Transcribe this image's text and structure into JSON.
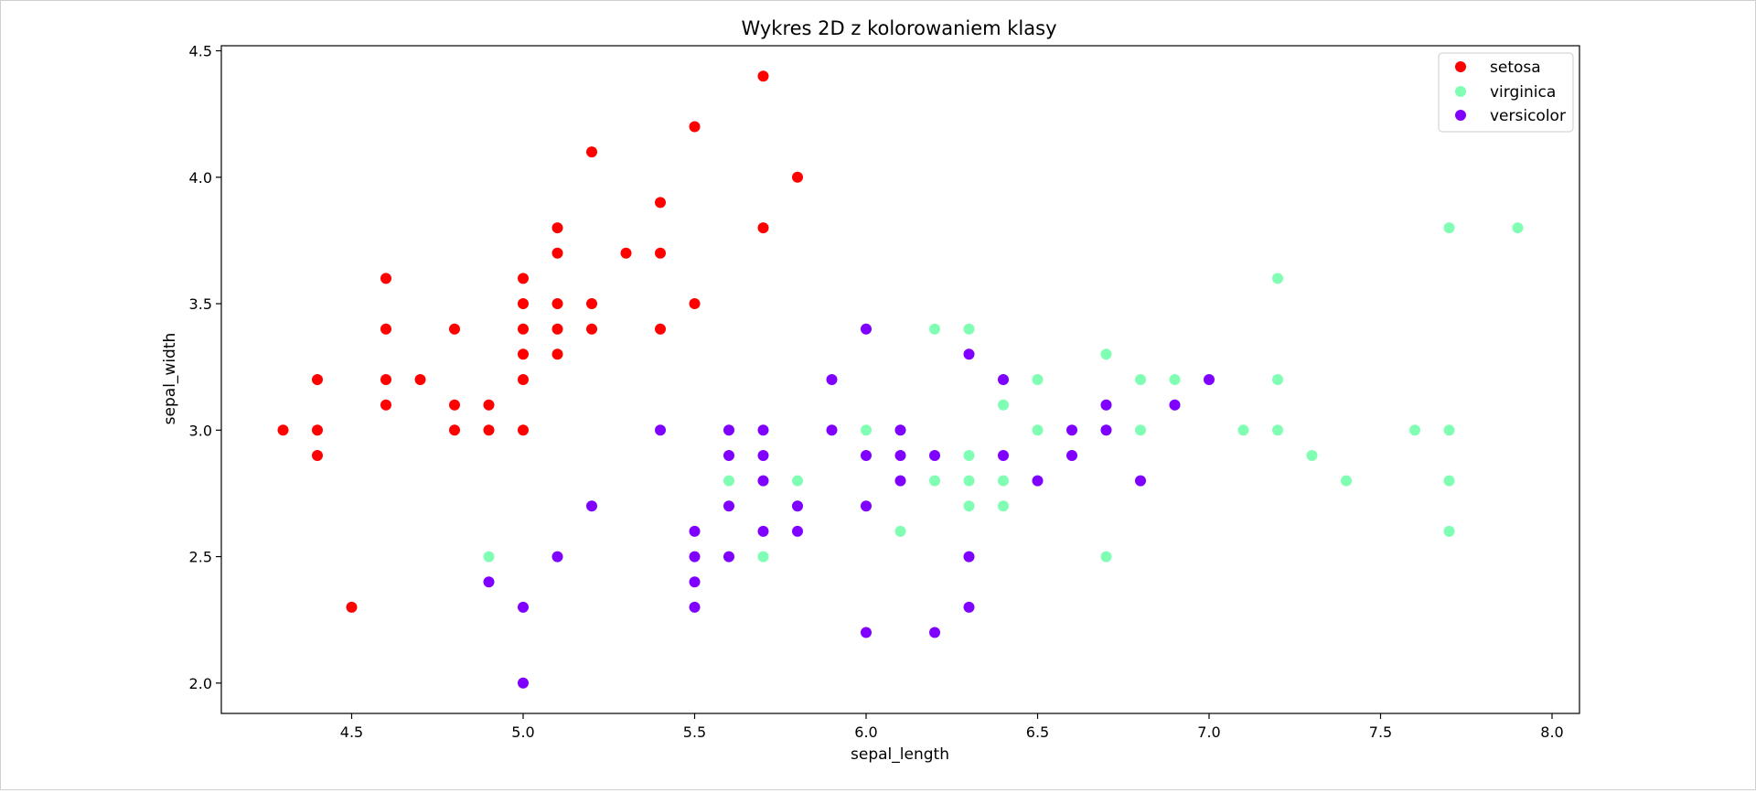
{
  "chart_data": {
    "type": "scatter",
    "title": "Wykres 2D z kolorowaniem klasy",
    "xlabel": "sepal_length",
    "ylabel": "sepal_width",
    "xlim": [
      4.12,
      8.08
    ],
    "ylim": [
      1.88,
      4.52
    ],
    "xticks": [
      "4.5",
      "5.0",
      "5.5",
      "6.0",
      "6.5",
      "7.0",
      "7.5",
      "8.0"
    ],
    "yticks": [
      "2.0",
      "2.5",
      "3.0",
      "3.5",
      "4.0",
      "4.5"
    ],
    "grid": false,
    "legend_position": "top-right",
    "series": [
      {
        "name": "setosa",
        "color": "#ff0000",
        "points": [
          [
            4.3,
            3.0
          ],
          [
            4.4,
            3.2
          ],
          [
            4.4,
            3.0
          ],
          [
            4.4,
            2.9
          ],
          [
            4.5,
            2.3
          ],
          [
            4.6,
            3.6
          ],
          [
            4.6,
            3.4
          ],
          [
            4.6,
            3.2
          ],
          [
            4.6,
            3.1
          ],
          [
            4.7,
            3.2
          ],
          [
            4.8,
            3.4
          ],
          [
            4.8,
            3.1
          ],
          [
            4.8,
            3.0
          ],
          [
            4.9,
            3.1
          ],
          [
            4.9,
            3.0
          ],
          [
            5.0,
            3.6
          ],
          [
            5.0,
            3.5
          ],
          [
            5.0,
            3.4
          ],
          [
            5.0,
            3.3
          ],
          [
            5.0,
            3.2
          ],
          [
            5.0,
            3.0
          ],
          [
            5.1,
            3.8
          ],
          [
            5.1,
            3.7
          ],
          [
            5.1,
            3.5
          ],
          [
            5.1,
            3.4
          ],
          [
            5.1,
            3.3
          ],
          [
            5.2,
            4.1
          ],
          [
            5.2,
            3.5
          ],
          [
            5.2,
            3.4
          ],
          [
            5.3,
            3.7
          ],
          [
            5.4,
            3.9
          ],
          [
            5.4,
            3.7
          ],
          [
            5.4,
            3.4
          ],
          [
            5.5,
            4.2
          ],
          [
            5.5,
            3.5
          ],
          [
            5.7,
            4.4
          ],
          [
            5.7,
            3.8
          ],
          [
            5.8,
            4.0
          ]
        ]
      },
      {
        "name": "virginica",
        "color": "#80ffb4",
        "points": [
          [
            4.9,
            2.5
          ],
          [
            5.6,
            2.8
          ],
          [
            5.7,
            2.5
          ],
          [
            5.8,
            2.8
          ],
          [
            5.8,
            2.7
          ],
          [
            6.0,
            3.0
          ],
          [
            6.1,
            3.0
          ],
          [
            6.1,
            2.6
          ],
          [
            6.2,
            3.4
          ],
          [
            6.2,
            2.8
          ],
          [
            6.3,
            3.4
          ],
          [
            6.3,
            2.9
          ],
          [
            6.3,
            2.8
          ],
          [
            6.3,
            2.7
          ],
          [
            6.3,
            2.5
          ],
          [
            6.4,
            3.2
          ],
          [
            6.4,
            3.1
          ],
          [
            6.4,
            2.8
          ],
          [
            6.4,
            2.7
          ],
          [
            6.5,
            3.2
          ],
          [
            6.5,
            3.0
          ],
          [
            6.7,
            3.3
          ],
          [
            6.7,
            3.1
          ],
          [
            6.7,
            3.0
          ],
          [
            6.7,
            2.5
          ],
          [
            6.8,
            3.2
          ],
          [
            6.8,
            3.0
          ],
          [
            6.9,
            3.2
          ],
          [
            6.9,
            3.1
          ],
          [
            7.1,
            3.0
          ],
          [
            7.2,
            3.6
          ],
          [
            7.2,
            3.2
          ],
          [
            7.2,
            3.0
          ],
          [
            7.3,
            2.9
          ],
          [
            7.4,
            2.8
          ],
          [
            7.6,
            3.0
          ],
          [
            7.7,
            3.8
          ],
          [
            7.7,
            3.0
          ],
          [
            7.7,
            2.8
          ],
          [
            7.7,
            2.6
          ],
          [
            7.9,
            3.8
          ]
        ]
      },
      {
        "name": "versicolor",
        "color": "#8000ff",
        "points": [
          [
            4.9,
            2.4
          ],
          [
            5.0,
            2.3
          ],
          [
            5.0,
            2.0
          ],
          [
            5.1,
            2.5
          ],
          [
            5.2,
            2.7
          ],
          [
            5.4,
            3.0
          ],
          [
            5.5,
            2.6
          ],
          [
            5.5,
            2.5
          ],
          [
            5.5,
            2.4
          ],
          [
            5.5,
            2.3
          ],
          [
            5.6,
            3.0
          ],
          [
            5.6,
            2.9
          ],
          [
            5.6,
            2.7
          ],
          [
            5.6,
            2.5
          ],
          [
            5.7,
            3.0
          ],
          [
            5.7,
            2.9
          ],
          [
            5.7,
            2.8
          ],
          [
            5.7,
            2.6
          ],
          [
            5.8,
            2.7
          ],
          [
            5.8,
            2.6
          ],
          [
            5.9,
            3.2
          ],
          [
            5.9,
            3.0
          ],
          [
            6.0,
            3.4
          ],
          [
            6.0,
            2.9
          ],
          [
            6.0,
            2.7
          ],
          [
            6.0,
            2.2
          ],
          [
            6.1,
            3.0
          ],
          [
            6.1,
            2.9
          ],
          [
            6.1,
            2.8
          ],
          [
            6.2,
            2.9
          ],
          [
            6.2,
            2.2
          ],
          [
            6.3,
            3.3
          ],
          [
            6.3,
            2.5
          ],
          [
            6.3,
            2.3
          ],
          [
            6.4,
            3.2
          ],
          [
            6.4,
            2.9
          ],
          [
            6.5,
            2.8
          ],
          [
            6.6,
            3.0
          ],
          [
            6.6,
            2.9
          ],
          [
            6.7,
            3.1
          ],
          [
            6.7,
            3.0
          ],
          [
            6.8,
            2.8
          ],
          [
            6.9,
            3.1
          ],
          [
            7.0,
            3.2
          ]
        ]
      }
    ]
  }
}
